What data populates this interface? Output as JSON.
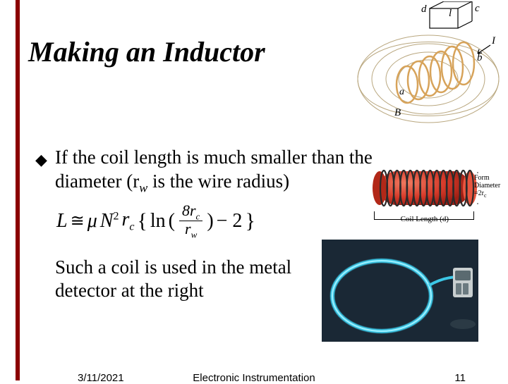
{
  "title": "Making an Inductor",
  "body": {
    "line1": "If the coil length is much smaller than the",
    "line2_pre": "diameter (r",
    "line2_sub": "w",
    "line2_post": " is the wire radius)"
  },
  "equation": {
    "L": "L",
    "approx": "≅",
    "mu": "μ",
    "N": "N",
    "sup2": "2",
    "rc": "r",
    "rc_sub": "c",
    "ln": "ln",
    "eight": "8",
    "rw": "r",
    "rw_sub": "w",
    "minus2": "− 2"
  },
  "sub_text": "Such a coil is used in the metal detector at the right",
  "red_coil": {
    "cylinder_color": "#d63a2a",
    "wire_color": "#2a2a2a",
    "form_label_l1": "Form",
    "form_label_l2": "Diameter",
    "form_label_l3": "=2r",
    "form_label_sub": "c",
    "len_label": "Coil Length (d)",
    "n_turns": 14
  },
  "solenoid": {
    "coil_color": "#d7a35a",
    "field_color": "#b9a77f",
    "label_d": "d",
    "label_l": "l",
    "label_c": "c",
    "label_I": "I",
    "label_b": "b",
    "label_a": "a",
    "label_B": "B"
  },
  "detector": {
    "bg": "#1a2835",
    "ring_color": "#3cc7e6",
    "device_body": "#c9cfd0"
  },
  "footer": {
    "date": "3/11/2021",
    "mid": "Electronic Instrumentation",
    "page": "11"
  },
  "accent_color": "#8b0000",
  "bullet_glyph": "◆"
}
